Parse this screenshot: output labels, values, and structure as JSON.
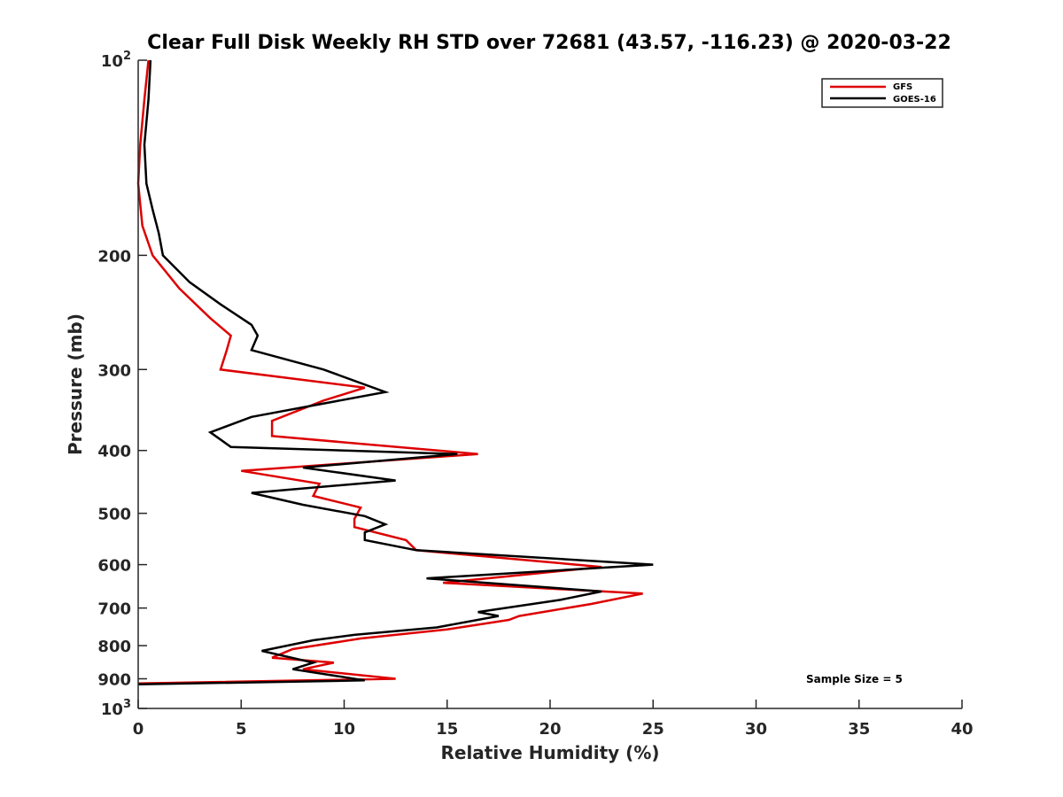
{
  "chart_data": {
    "type": "line",
    "title": "Clear Full Disk Weekly RH STD over 72681 (43.57, -116.23) @ 2020-03-22",
    "xlabel": "Relative Humidity (%)",
    "ylabel": "Pressure (mb)",
    "xlim": [
      0,
      40
    ],
    "ylim": [
      100,
      1000
    ],
    "yscale": "log",
    "y_reversed": true,
    "x_ticks": [
      "0",
      "5",
      "10",
      "15",
      "20",
      "25",
      "30",
      "35",
      "40"
    ],
    "y_ticks": [
      {
        "value": 100,
        "base": "10",
        "exp": "2"
      },
      {
        "value": 200,
        "label": "200"
      },
      {
        "value": 300,
        "label": "300"
      },
      {
        "value": 400,
        "label": "400"
      },
      {
        "value": 500,
        "label": "500"
      },
      {
        "value": 600,
        "label": "600"
      },
      {
        "value": 700,
        "label": "700"
      },
      {
        "value": 800,
        "label": "800"
      },
      {
        "value": 900,
        "label": "900"
      },
      {
        "value": 1000,
        "base": "10",
        "exp": "3"
      }
    ],
    "grid": false,
    "legend_position": "top-right",
    "annotation": "Sample Size = 5",
    "series": [
      {
        "name": "GFS",
        "color": "#dd0000",
        "points": [
          [
            0.5,
            100
          ],
          [
            0.3,
            115
          ],
          [
            0.1,
            135
          ],
          [
            0.0,
            155
          ],
          [
            0.2,
            180
          ],
          [
            0.7,
            200
          ],
          [
            2.0,
            225
          ],
          [
            3.5,
            250
          ],
          [
            4.5,
            266
          ],
          [
            4.3,
            280
          ],
          [
            4.0,
            300
          ],
          [
            11.0,
            320
          ],
          [
            9.0,
            335
          ],
          [
            6.5,
            360
          ],
          [
            6.5,
            380
          ],
          [
            16.5,
            405
          ],
          [
            5.0,
            430
          ],
          [
            8.8,
            450
          ],
          [
            8.5,
            470
          ],
          [
            10.8,
            490
          ],
          [
            10.5,
            510
          ],
          [
            10.5,
            525
          ],
          [
            13.0,
            550
          ],
          [
            13.5,
            570
          ],
          [
            22.5,
            605
          ],
          [
            14.8,
            640
          ],
          [
            24.5,
            665
          ],
          [
            22.0,
            690
          ],
          [
            18.5,
            720
          ],
          [
            18.0,
            730
          ],
          [
            15.0,
            755
          ],
          [
            10.8,
            780
          ],
          [
            7.5,
            810
          ],
          [
            6.5,
            835
          ],
          [
            9.5,
            850
          ],
          [
            8.0,
            870
          ],
          [
            12.5,
            900
          ],
          [
            0.0,
            915
          ]
        ]
      },
      {
        "name": "GOES-16",
        "color": "#000000",
        "points": [
          [
            0.6,
            100
          ],
          [
            0.5,
            115
          ],
          [
            0.3,
            135
          ],
          [
            0.4,
            155
          ],
          [
            0.7,
            170
          ],
          [
            1.0,
            185
          ],
          [
            1.2,
            200
          ],
          [
            2.5,
            220
          ],
          [
            4.0,
            238
          ],
          [
            5.5,
            256
          ],
          [
            5.8,
            266
          ],
          [
            5.5,
            280
          ],
          [
            9.0,
            300
          ],
          [
            12.0,
            325
          ],
          [
            5.5,
            355
          ],
          [
            3.5,
            375
          ],
          [
            4.5,
            395
          ],
          [
            15.5,
            405
          ],
          [
            8.0,
            425
          ],
          [
            12.5,
            445
          ],
          [
            5.5,
            465
          ],
          [
            8.0,
            485
          ],
          [
            11.0,
            505
          ],
          [
            12.0,
            520
          ],
          [
            11.0,
            535
          ],
          [
            11.0,
            550
          ],
          [
            13.5,
            570
          ],
          [
            25.0,
            600
          ],
          [
            14.0,
            630
          ],
          [
            22.5,
            660
          ],
          [
            20.5,
            680
          ],
          [
            16.5,
            710
          ],
          [
            17.5,
            720
          ],
          [
            14.5,
            750
          ],
          [
            10.5,
            770
          ],
          [
            8.5,
            785
          ],
          [
            6.0,
            815
          ],
          [
            8.5,
            850
          ],
          [
            7.5,
            870
          ],
          [
            11.0,
            905
          ],
          [
            0.0,
            918
          ]
        ]
      }
    ]
  }
}
